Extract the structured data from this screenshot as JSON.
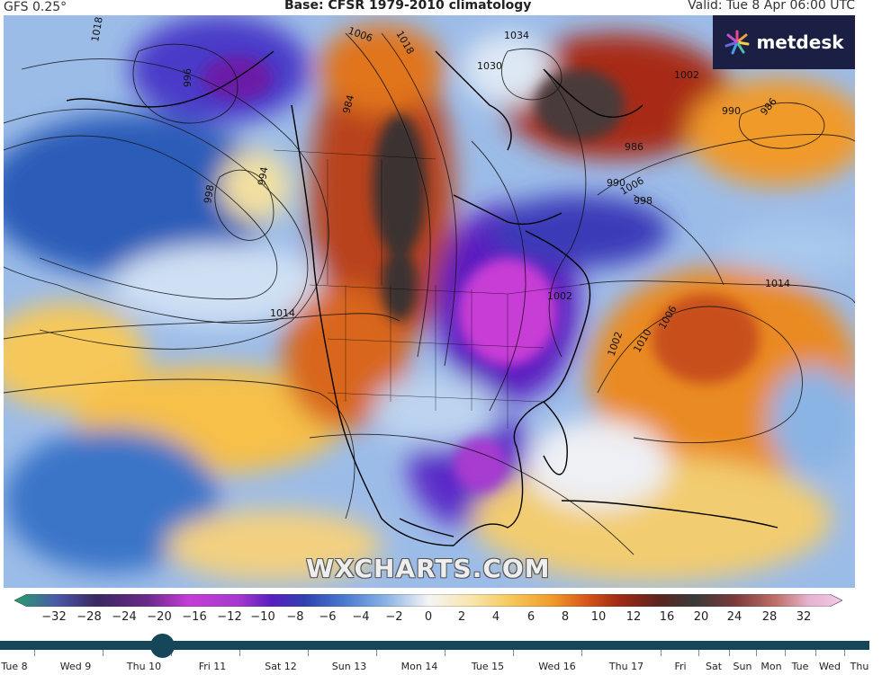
{
  "header": {
    "model": "GFS 0.25°",
    "base": "Base: CFSR 1979-2010 climatology",
    "valid": "Valid: Tue 8 Apr 06:00 UTC"
  },
  "logo": {
    "text": "metdesk",
    "icon": "metdesk-star-icon"
  },
  "watermark": "WXCHARTS.COM",
  "map": {
    "isobar_labels": [
      "1018",
      "1006",
      "1018",
      "1034",
      "1030",
      "1002",
      "990",
      "986",
      "996",
      "994",
      "998",
      "984",
      "1006",
      "986",
      "990",
      "998",
      "1002",
      "1014",
      "1014",
      "1006",
      "1010",
      "1002"
    ]
  },
  "colorbar": {
    "ticks": [
      "−32",
      "−28",
      "−24",
      "−20",
      "−16",
      "−12",
      "−10",
      "−8",
      "−6",
      "−4",
      "−2",
      "0",
      "2",
      "4",
      "6",
      "8",
      "10",
      "12",
      "16",
      "20",
      "24",
      "28",
      "32"
    ],
    "colors": [
      "#27a06b",
      "#4a5aa8",
      "#3a2860",
      "#6a2a8a",
      "#c43cd6",
      "#a63ad0",
      "#5a1ec0",
      "#3040b0",
      "#4a7cd0",
      "#8eb4e6",
      "#d6e6f6",
      "#f4f4f4",
      "#f8e6b0",
      "#f6c85a",
      "#f09a2a",
      "#d8581a",
      "#a02a14",
      "#5a2420",
      "#3a3a3a",
      "#7a3a3a",
      "#c0706a",
      "#e6b4d0",
      "#f2c8e8"
    ]
  },
  "timeline": {
    "days": [
      "Tue 8",
      "Wed 9",
      "Thu 10",
      "Fri 11",
      "Sat 12",
      "Sun 13",
      "Mon 14",
      "Tue 15",
      "Wed 16",
      "Thu 17",
      "Fri",
      "Sat",
      "Sun",
      "Mon",
      "Tue",
      "Wed",
      "Thu"
    ],
    "selected": "Thu 10"
  }
}
